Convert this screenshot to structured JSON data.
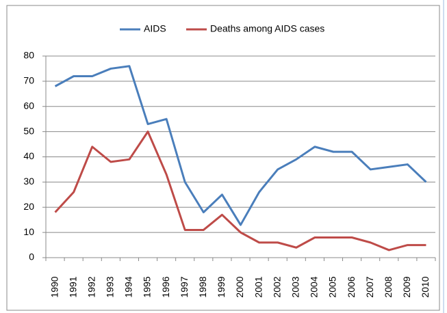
{
  "chart_data": {
    "type": "line",
    "categories": [
      "1990",
      "1991",
      "1992",
      "1993",
      "1994",
      "1995",
      "1996",
      "1997",
      "1998",
      "1999",
      "2000",
      "2001",
      "2002",
      "2003",
      "2004",
      "2005",
      "2006",
      "2007",
      "2008",
      "2009",
      "2010"
    ],
    "series": [
      {
        "name": "AIDS",
        "color": "#4a7ebb",
        "values": [
          68,
          72,
          72,
          75,
          76,
          53,
          55,
          30,
          18,
          25,
          13,
          26,
          35,
          39,
          44,
          42,
          42,
          35,
          36,
          37,
          30
        ]
      },
      {
        "name": "Deaths among AIDS cases",
        "color": "#be4b48",
        "values": [
          18,
          26,
          44,
          38,
          39,
          50,
          33,
          11,
          11,
          17,
          10,
          6,
          6,
          4,
          8,
          8,
          8,
          6,
          3,
          5,
          5
        ]
      }
    ],
    "ylim": [
      0,
      80
    ],
    "yticks": [
      0,
      10,
      20,
      30,
      40,
      50,
      60,
      70,
      80
    ],
    "grid": true,
    "legend": "top"
  }
}
